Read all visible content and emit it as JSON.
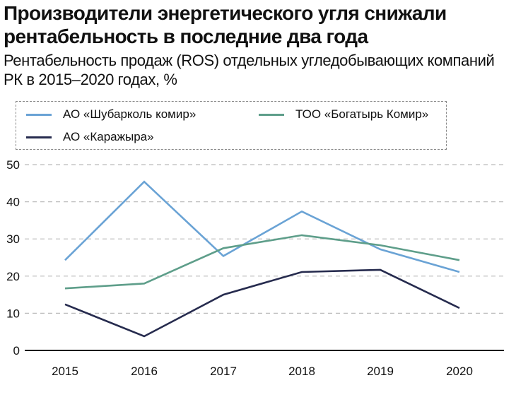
{
  "chart_data": {
    "type": "line",
    "title": "Производители энергетического угля снижали рентабельность в последние два года",
    "subtitle": "Рентабельность продаж (ROS) отдельных угледобывающих компаний РК в 2015–2020 годах, %",
    "xlabel": "",
    "ylabel": "",
    "x": [
      "2015",
      "2016",
      "2017",
      "2018",
      "2019",
      "2020"
    ],
    "ylim": [
      0,
      50
    ],
    "yticks": [
      "0",
      "10",
      "20",
      "30",
      "40",
      "50"
    ],
    "grid": true,
    "legend_position": "top",
    "series": [
      {
        "name": "АО «Шубарколь комир»",
        "color": "#6aa3d5",
        "values": [
          24.3,
          45.4,
          25.4,
          37.4,
          27.2,
          21.1
        ]
      },
      {
        "name": "ТОО «Богатырь Комир»",
        "color": "#5e9e8a",
        "values": [
          16.7,
          18.0,
          27.5,
          31.0,
          28.3,
          24.3
        ]
      },
      {
        "name": "АО «Каражыра»",
        "color": "#262b4e",
        "values": [
          12.4,
          3.8,
          15.0,
          21.1,
          21.7,
          11.4
        ]
      }
    ]
  }
}
